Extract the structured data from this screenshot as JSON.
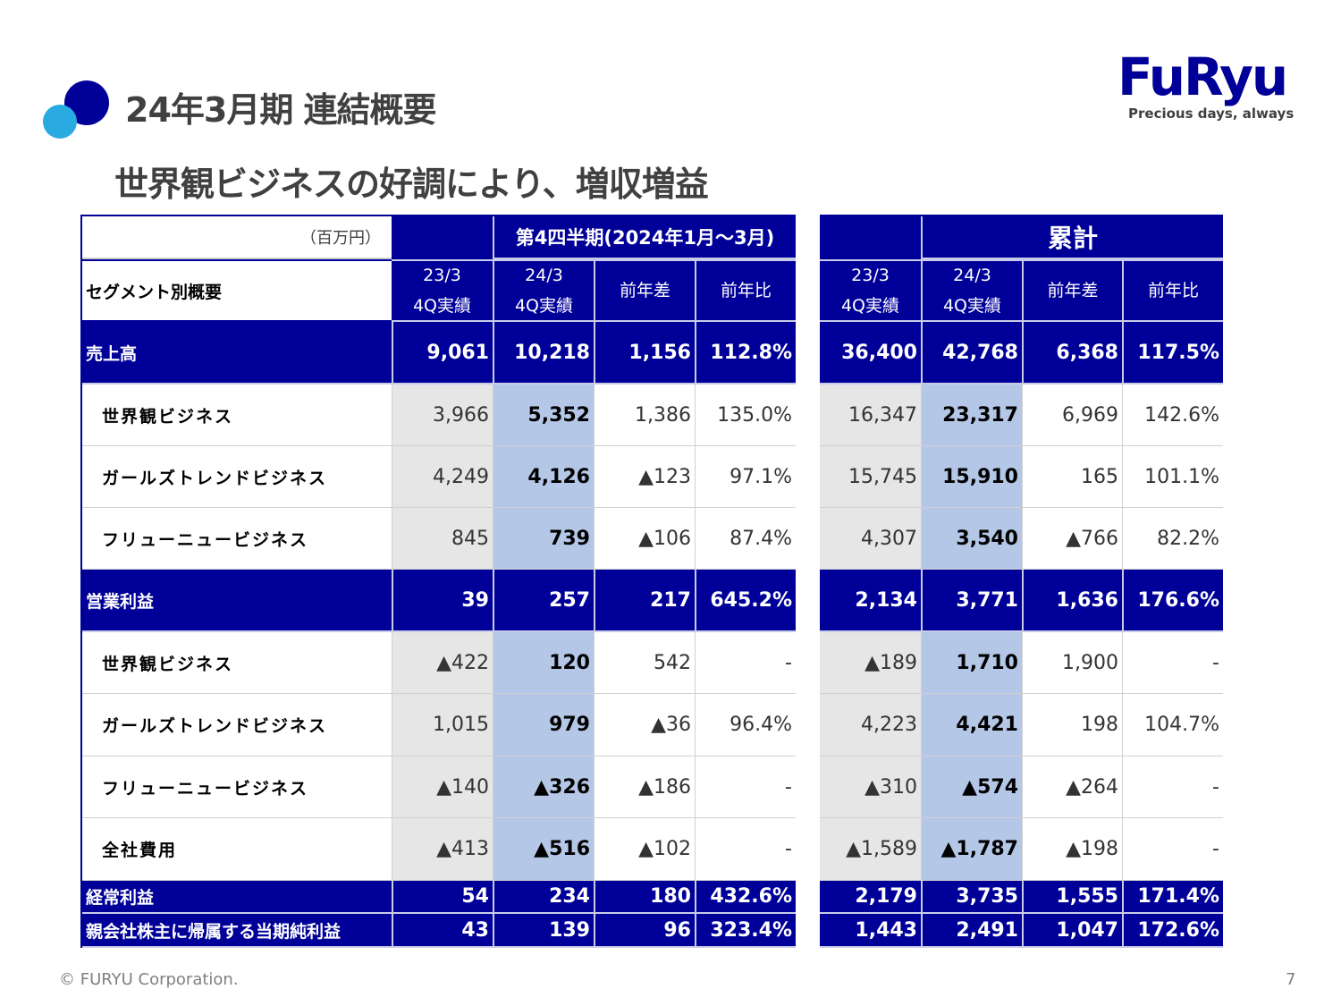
{
  "header": {
    "title": "24年3月期 連結概要",
    "subtitle": "世界観ビジネスの好調により、増収増益"
  },
  "logo": {
    "text": "FuRyu",
    "tagline": "Precious days, always"
  },
  "colors": {
    "navy": "#000099",
    "prev_col": "#e6e6e6",
    "curr_col": "#b4c7e7",
    "accent_dot": "#29abe2"
  },
  "table": {
    "unit": "（百万円）",
    "segment_header": "セグメント別概要",
    "quarter_group": "第4四半期(2024年1月～3月)",
    "cumulative_group": "累計",
    "columns": [
      [
        "23/3",
        "4Q実績"
      ],
      [
        "24/3",
        "4Q実績"
      ],
      [
        "前年差",
        ""
      ],
      [
        "前年比",
        ""
      ]
    ],
    "rows": [
      {
        "label": "売上高",
        "type": "main",
        "q": [
          "9,061",
          "10,218",
          "1,156",
          "112.8%"
        ],
        "c": [
          "36,400",
          "42,768",
          "6,368",
          "117.5%"
        ]
      },
      {
        "label": "世界観ビジネス",
        "type": "sub",
        "q": [
          "3,966",
          "5,352",
          "1,386",
          "135.0%"
        ],
        "c": [
          "16,347",
          "23,317",
          "6,969",
          "142.6%"
        ]
      },
      {
        "label": "ガールズトレンドビジネス",
        "type": "sub",
        "q": [
          "4,249",
          "4,126",
          "▲123",
          "97.1%"
        ],
        "c": [
          "15,745",
          "15,910",
          "165",
          "101.1%"
        ]
      },
      {
        "label": "フリューニュービジネス",
        "type": "sub",
        "q": [
          "845",
          "739",
          "▲106",
          "87.4%"
        ],
        "c": [
          "4,307",
          "3,540",
          "▲766",
          "82.2%"
        ]
      },
      {
        "label": "営業利益",
        "type": "main",
        "q": [
          "39",
          "257",
          "217",
          "645.2%"
        ],
        "c": [
          "2,134",
          "3,771",
          "1,636",
          "176.6%"
        ]
      },
      {
        "label": "世界観ビジネス",
        "type": "sub",
        "q": [
          "▲422",
          "120",
          "542",
          "-"
        ],
        "c": [
          "▲189",
          "1,710",
          "1,900",
          "-"
        ]
      },
      {
        "label": "ガールズトレンドビジネス",
        "type": "sub",
        "q": [
          "1,015",
          "979",
          "▲36",
          "96.4%"
        ],
        "c": [
          "4,223",
          "4,421",
          "198",
          "104.7%"
        ]
      },
      {
        "label": "フリューニュービジネス",
        "type": "sub",
        "q": [
          "▲140",
          "▲326",
          "▲186",
          "-"
        ],
        "c": [
          "▲310",
          "▲574",
          "▲264",
          "-"
        ]
      },
      {
        "label": "全社費用",
        "type": "sub",
        "q": [
          "▲413",
          "▲516",
          "▲102",
          "-"
        ],
        "c": [
          "▲1,589",
          "▲1,787",
          "▲198",
          "-"
        ]
      },
      {
        "label": "経常利益",
        "type": "thin",
        "q": [
          "54",
          "234",
          "180",
          "432.6%"
        ],
        "c": [
          "2,179",
          "3,735",
          "1,555",
          "171.4%"
        ]
      },
      {
        "label": "親会社株主に帰属する当期純利益",
        "type": "thin",
        "q": [
          "43",
          "139",
          "96",
          "323.4%"
        ],
        "c": [
          "1,443",
          "2,491",
          "1,047",
          "172.6%"
        ]
      }
    ]
  },
  "footer": {
    "copyright": "© FURYU Corporation.",
    "page": "7"
  }
}
